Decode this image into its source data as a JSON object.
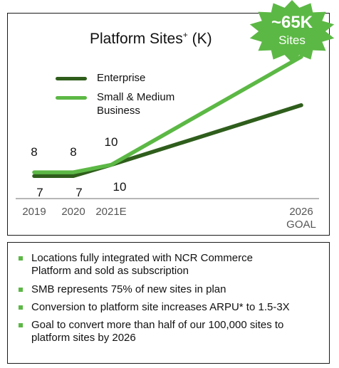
{
  "chart_data": {
    "type": "line",
    "title": "Platform Sites",
    "title_superscript": "+",
    "title_unit": "(K)",
    "x": [
      "2019",
      "2020",
      "2021E",
      "2026"
    ],
    "x_tick_labels": [
      "2019",
      "2020",
      "2021E",
      "2026"
    ],
    "x_tick_sublabel_2026": "GOAL",
    "series": [
      {
        "name": "Enterprise",
        "values": [
          7,
          7,
          10,
          26
        ],
        "labels": [
          "7",
          "7",
          "10",
          ""
        ],
        "color": "#2f5e1c"
      },
      {
        "name": "Small & Medium Business",
        "legend_lines": [
          "Small & Medium",
          "Business"
        ],
        "values": [
          8,
          8,
          10,
          39
        ],
        "labels": [
          "8",
          "8",
          "10",
          ""
        ],
        "color": "#5cb845"
      }
    ],
    "ylim": [
      0,
      42
    ],
    "grid": false,
    "legend_placement": "top-left"
  },
  "callout": {
    "big": "~65K",
    "small": "Sites",
    "color": "#5cb845"
  },
  "bullets": [
    [
      "Locations fully integrated with NCR Commerce",
      "Platform and sold as subscription"
    ],
    [
      "SMB represents 75% of new sites in plan"
    ],
    [
      "Conversion to platform site increases ARPU* to 1.5-3X"
    ],
    [
      "Goal to convert more than half of our 100,000 sites to",
      "platform sites by 2026"
    ]
  ],
  "colors": {
    "accent": "#5cb845",
    "dark": "#2f5e1c",
    "axis": "#8a8a8a",
    "tick_text": "#555555"
  }
}
